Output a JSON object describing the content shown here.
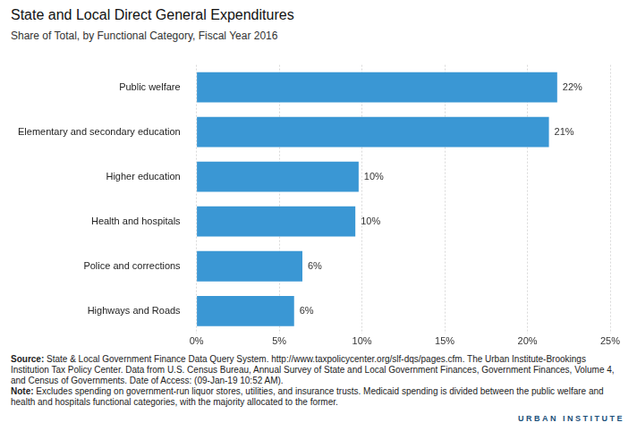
{
  "chart_data": {
    "type": "bar",
    "orientation": "horizontal",
    "title": "State and Local Direct General Expenditures",
    "subtitle": "Share of Total, by Functional Category, Fiscal Year 2016",
    "categories": [
      "Public welfare",
      "Elementary and secondary education",
      "Higher education",
      "Health and hospitals",
      "Police and corrections",
      "Highways and Roads"
    ],
    "values": [
      21.8,
      21.3,
      9.8,
      9.6,
      6.4,
      5.9
    ],
    "value_labels": [
      "22%",
      "21%",
      "10%",
      "10%",
      "6%",
      "6%"
    ],
    "data_labels": true,
    "color": "#3a97d4",
    "xlim": [
      0,
      25
    ],
    "xticks": [
      {
        "value": 0,
        "label": "0%"
      },
      {
        "value": 5,
        "label": "5%"
      },
      {
        "value": 10,
        "label": "10%"
      },
      {
        "value": 15,
        "label": "15%"
      },
      {
        "value": 20,
        "label": "20%"
      },
      {
        "value": 25,
        "label": "25%"
      }
    ],
    "grid": true,
    "source": {
      "label": "Source:",
      "text": "State & Local Government Finance Data Query System. http://www.taxpolicycenter.org/slf-dqs/pages.cfm. The Urban Institute-Brookings Institution Tax Policy Center. Data from U.S. Census Bureau, Annual Survey of State and Local Government Finances, Government Finances, Volume 4, and Census of Governments. Date of Access: (09-Jan-19 10:52 AM)."
    },
    "note": {
      "label": "Note:",
      "text": "Excludes spending on government-run liquor stores, utilities, and insurance trusts. Medicaid spending is divided between the public welfare and health and hospitals functional categories, with the majority allocated to the former."
    },
    "logo": "URBAN INSTITUTE"
  }
}
